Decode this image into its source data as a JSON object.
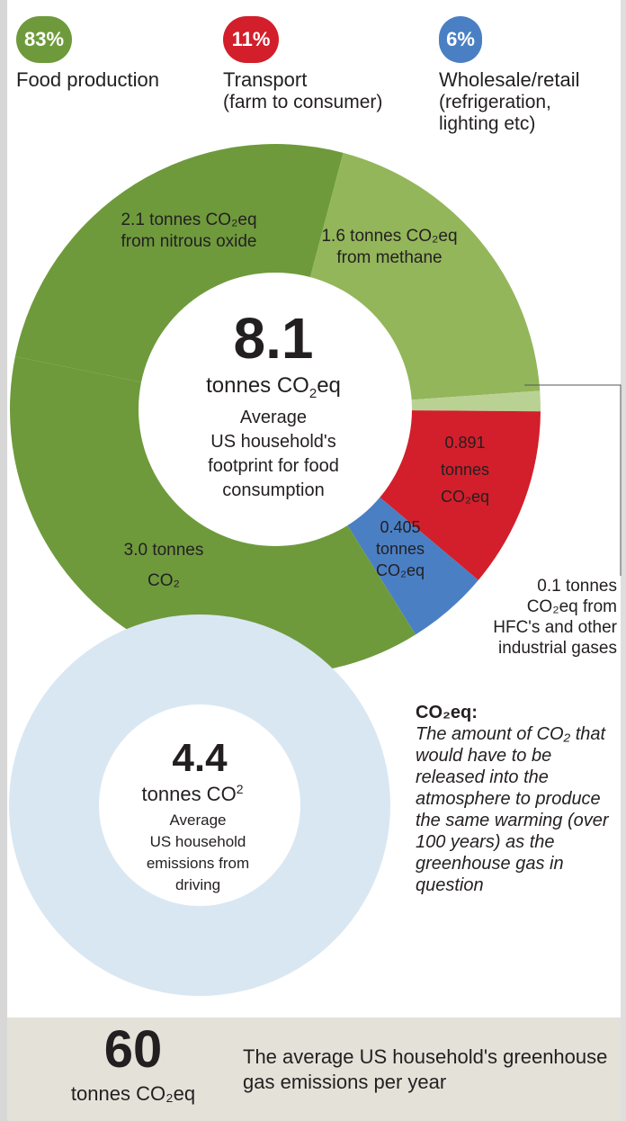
{
  "legend": [
    {
      "badge": "83%",
      "label": "Food production",
      "sub": "",
      "color": "#6e9a3c"
    },
    {
      "badge": "11%",
      "label": "Transport",
      "sub": "(farm to consumer)",
      "color": "#d21f2b"
    },
    {
      "badge": "6%",
      "label": "Wholesale/retail",
      "sub": "(refrigeration, lighting etc)",
      "color": "#4a7fc4"
    }
  ],
  "chart_data": [
    {
      "type": "pie",
      "center": {
        "value": "8.1",
        "unit_prefix": "tonnes CO",
        "unit_sub": "2",
        "unit_suffix": "eq",
        "lines": [
          "Average",
          "US household's",
          "footprint for food",
          "consumption"
        ]
      },
      "slices": [
        {
          "name": "nitrous oxide",
          "value": 2.1,
          "label": [
            "2.1 tonnes CO₂eq",
            "from nitrous oxide"
          ],
          "color": "#6e9a3c"
        },
        {
          "name": "methane",
          "value": 1.6,
          "label": [
            "1.6 tonnes CO₂eq",
            "from methane"
          ],
          "color": "#93b65a"
        },
        {
          "name": "HFC's and other industrial gases",
          "value": 0.1,
          "label": [
            "0.1 tonnes",
            "CO₂eq from",
            "HFC's and other",
            "industrial gases"
          ],
          "color": "#b9d294"
        },
        {
          "name": "transport",
          "value": 0.891,
          "label": [
            "0.891",
            "tonnes",
            "CO₂eq"
          ],
          "color": "#d21f2b"
        },
        {
          "name": "wholesale/retail",
          "value": 0.405,
          "label": [
            "0.405",
            "tonnes",
            "CO₂eq"
          ],
          "color": "#4a7fc4"
        },
        {
          "name": "CO2",
          "value": 3.0,
          "label": [
            "3.0 tonnes",
            "CO₂"
          ],
          "color": "#6e9a3c"
        }
      ]
    },
    {
      "type": "pie",
      "center": {
        "value": "4.4",
        "unit_prefix": "tonnes CO",
        "unit_sub": "2",
        "unit_suffix": "",
        "lines": [
          "Average",
          "US household",
          "emissions from",
          "driving"
        ]
      },
      "slices": [
        {
          "name": "driving",
          "value": 4.4,
          "color": "#d9e7f2"
        }
      ]
    }
  ],
  "note": {
    "term": "CO₂eq:",
    "definition": "The amount of CO₂ that would have to be released into the atmosphere to produce the same warming (over 100 years) as the greenhouse gas in question"
  },
  "footer": {
    "value": "60",
    "unit": "tonnes CO₂eq",
    "text": "The average US household's greenhouse gas emissions per year"
  }
}
